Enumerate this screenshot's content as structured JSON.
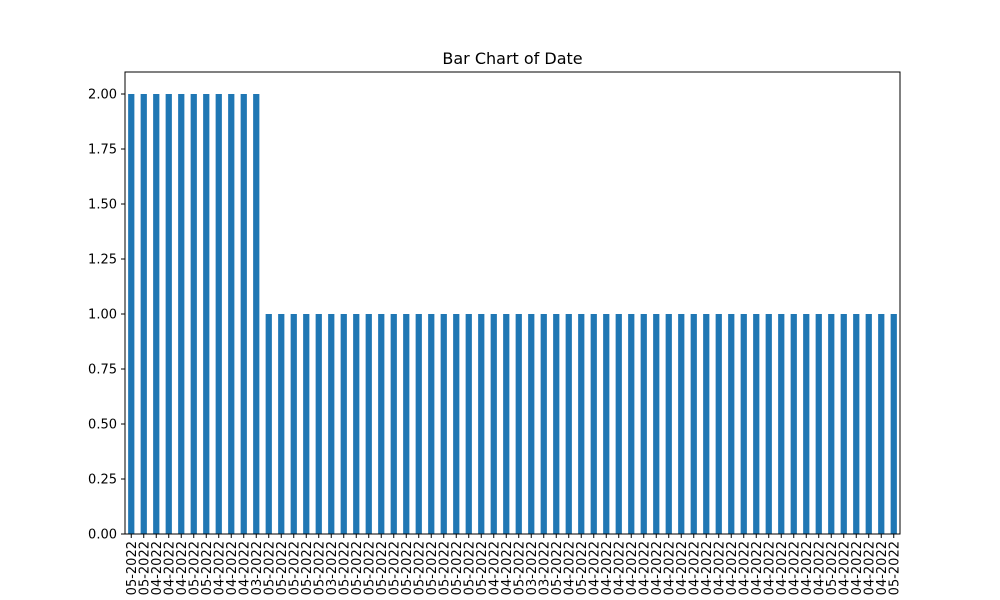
{
  "chart_data": {
    "type": "bar",
    "title": "Bar Chart of Date",
    "xlabel": "",
    "ylabel": "",
    "ylim": [
      0,
      2.1
    ],
    "yticks": [
      "0.00",
      "0.25",
      "0.50",
      "0.75",
      "1.00",
      "1.25",
      "1.50",
      "1.75",
      "2.00"
    ],
    "bar_color": "#1f77b4",
    "categories": [
      "05-2022",
      "05-2022",
      "04-2022",
      "04-2022",
      "04-2022",
      "05-2022",
      "05-2022",
      "04-2022",
      "04-2022",
      "04-2022",
      "03-2022",
      "05-2022",
      "05-2022",
      "05-2022",
      "05-2022",
      "05-2022",
      "03-2022",
      "05-2022",
      "05-2022",
      "05-2022",
      "05-2022",
      "05-2022",
      "05-2022",
      "05-2022",
      "05-2022",
      "05-2022",
      "05-2022",
      "05-2022",
      "05-2022",
      "04-2022",
      "04-2022",
      "05-2022",
      "03-2022",
      "03-2022",
      "05-2022",
      "04-2022",
      "05-2022",
      "04-2022",
      "04-2022",
      "04-2022",
      "04-2022",
      "04-2022",
      "04-2022",
      "04-2022",
      "04-2022",
      "04-2022",
      "04-2022",
      "04-2022",
      "04-2022",
      "04-2022",
      "04-2022",
      "04-2022",
      "04-2022",
      "04-2022",
      "04-2022",
      "04-2022",
      "05-2022",
      "04-2022",
      "04-2022",
      "04-2022",
      "04-2022",
      "05-2022"
    ],
    "values": [
      2,
      2,
      2,
      2,
      2,
      2,
      2,
      2,
      2,
      2,
      2,
      1,
      1,
      1,
      1,
      1,
      1,
      1,
      1,
      1,
      1,
      1,
      1,
      1,
      1,
      1,
      1,
      1,
      1,
      1,
      1,
      1,
      1,
      1,
      1,
      1,
      1,
      1,
      1,
      1,
      1,
      1,
      1,
      1,
      1,
      1,
      1,
      1,
      1,
      1,
      1,
      1,
      1,
      1,
      1,
      1,
      1,
      1,
      1,
      1,
      1,
      1
    ]
  }
}
